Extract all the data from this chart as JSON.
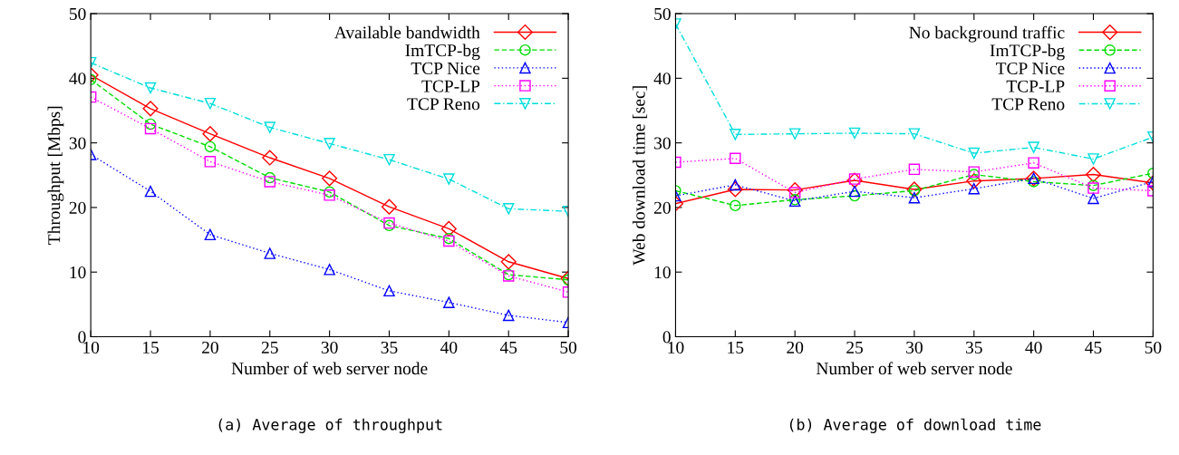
{
  "chart_data": [
    {
      "type": "line",
      "xlabel": "Number of web server node",
      "ylabel": "Throughput [Mbps]",
      "x": [
        10,
        15,
        20,
        25,
        30,
        35,
        40,
        45,
        50
      ],
      "xlim": [
        10,
        50
      ],
      "xticks": [
        10,
        15,
        20,
        25,
        30,
        35,
        40,
        45,
        50
      ],
      "ylim": [
        0,
        50
      ],
      "yticks": [
        0,
        10,
        20,
        30,
        40,
        50
      ],
      "grid": false,
      "legend": "top right",
      "annotations": [
        "(a) Average of throughput"
      ],
      "series": [
        {
          "name": "Available bandwidth",
          "color": "#ff0000",
          "marker": "diamond",
          "line_style": "solid",
          "values": [
            40.5,
            35.3,
            31.4,
            27.7,
            24.5,
            20.1,
            16.7,
            11.6,
            9.0
          ]
        },
        {
          "name": "ImTCP-bg",
          "color": "#00dd00",
          "marker": "circle",
          "line_style": "dashed",
          "values": [
            39.8,
            32.9,
            29.4,
            24.6,
            22.4,
            17.2,
            15.2,
            9.6,
            8.8
          ]
        },
        {
          "name": "TCP Nice",
          "color": "#0000ff",
          "marker": "triangle",
          "line_style": "dotted",
          "values": [
            28.2,
            22.5,
            15.8,
            12.9,
            10.4,
            7.1,
            5.3,
            3.3,
            2.2
          ]
        },
        {
          "name": "TCP-LP",
          "color": "#ff00ff",
          "marker": "square",
          "line_style": "dotted",
          "values": [
            37.1,
            32.2,
            27.1,
            24.0,
            21.9,
            17.6,
            14.8,
            9.4,
            6.9
          ]
        },
        {
          "name": "TCP Reno",
          "color": "#00dddd",
          "marker": "triangle_down",
          "line_style": "dashdot",
          "values": [
            42.4,
            38.5,
            36.1,
            32.4,
            29.9,
            27.4,
            24.4,
            19.8,
            19.4
          ]
        }
      ]
    },
    {
      "type": "line",
      "xlabel": "Number of web server node",
      "ylabel": "Web download time [sec]",
      "x": [
        10,
        15,
        20,
        25,
        30,
        35,
        40,
        45,
        50
      ],
      "xlim": [
        10,
        50
      ],
      "xticks": [
        10,
        15,
        20,
        25,
        30,
        35,
        40,
        45,
        50
      ],
      "ylim": [
        0,
        50
      ],
      "yticks": [
        0,
        10,
        20,
        30,
        40,
        50
      ],
      "grid": false,
      "legend": "top right",
      "annotations": [
        "(b) Average of download time"
      ],
      "series": [
        {
          "name": "No background traffic",
          "color": "#ff0000",
          "marker": "diamond",
          "line_style": "solid",
          "values": [
            20.6,
            22.8,
            22.7,
            24.2,
            22.8,
            24.1,
            24.5,
            25.1,
            23.8
          ]
        },
        {
          "name": "ImTCP-bg",
          "color": "#00dd00",
          "marker": "circle",
          "line_style": "dashed",
          "values": [
            22.6,
            20.3,
            21.2,
            21.8,
            22.6,
            25.1,
            24.0,
            23.4,
            25.3
          ]
        },
        {
          "name": "TCP Nice",
          "color": "#0000ff",
          "marker": "triangle",
          "line_style": "dotted",
          "values": [
            21.8,
            23.5,
            21.0,
            22.5,
            21.5,
            22.9,
            24.5,
            21.4,
            24.0
          ]
        },
        {
          "name": "TCP-LP",
          "color": "#ff00ff",
          "marker": "square",
          "line_style": "dotted",
          "values": [
            27.0,
            27.6,
            22.3,
            24.4,
            25.9,
            25.5,
            26.9,
            23.0,
            22.6
          ]
        },
        {
          "name": "TCP Reno",
          "color": "#00dddd",
          "marker": "triangle_down",
          "line_style": "dashdot",
          "values": [
            48.4,
            31.3,
            31.4,
            31.5,
            31.4,
            28.4,
            29.3,
            27.5,
            30.9
          ]
        }
      ]
    }
  ]
}
